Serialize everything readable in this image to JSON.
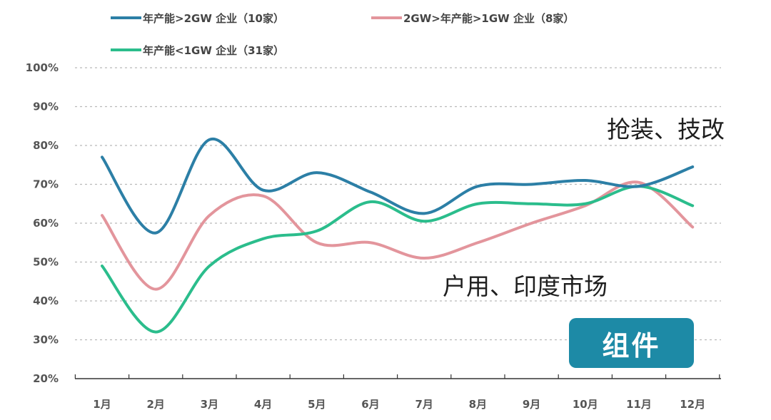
{
  "chart_data": {
    "type": "line",
    "categories": [
      "1月",
      "2月",
      "3月",
      "4月",
      "5月",
      "6月",
      "7月",
      "8月",
      "9月",
      "10月",
      "11月",
      "12月"
    ],
    "ylim": [
      20,
      100
    ],
    "yticks": [
      "20%",
      "30%",
      "40%",
      "50%",
      "60%",
      "70%",
      "80%",
      "90%",
      "100%"
    ],
    "grid": true,
    "legend_position": "top",
    "series": [
      {
        "name": "年产能>2GW 企业（10家）",
        "color": "#2c7fa6",
        "values": [
          77,
          57.5,
          81.5,
          68.5,
          73,
          68,
          62.5,
          69.5,
          70,
          71,
          69.5,
          74.5
        ]
      },
      {
        "name": "2GW>年产能>1GW 企业（8家）",
        "color": "#e3959c",
        "values": [
          62,
          43,
          62,
          67,
          55,
          55,
          51,
          55,
          60,
          64.5,
          70.5,
          59
        ]
      },
      {
        "name": "年产能<1GW 企业（31家）",
        "color": "#2bbd8c",
        "values": [
          49,
          32,
          49,
          56,
          58,
          65.5,
          60.5,
          65,
          65,
          65,
          69.5,
          64.5
        ]
      }
    ],
    "annotations": [
      "抢装、技改",
      "户用、印度市场"
    ]
  },
  "badge": {
    "label": "组件"
  }
}
